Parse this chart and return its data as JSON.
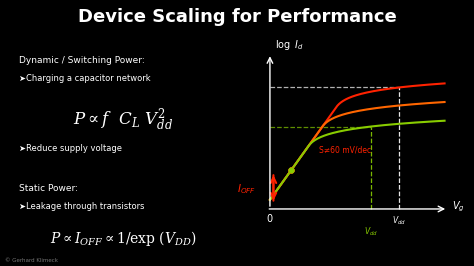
{
  "title": "Device Scaling for Performance",
  "bg_color": "#000000",
  "title_color": "#ffffff",
  "title_fontsize": 13,
  "dynamic_heading": "Dynamic / Switching Power:",
  "dynamic_bullet1": "➤Charging a capacitor network",
  "dynamic_eq": "$P \\propto f \\ \\ C_L \\ V_{dd}^{2}$",
  "dynamic_bullet2": "➤Reduce supply voltage",
  "static_heading": "Static Power:",
  "static_bullet1": "➤Leakage through transistors",
  "static_eq": "$P \\propto I_{OFF} \\propto 1/\\mathrm{exp}\\ (V_{DD})$",
  "copyright": "© Gerhard Klimeck",
  "graph_ylabel": "$\\log\\ I_d$",
  "graph_xlabel": "$V_g$",
  "graph_origin_label": "0",
  "ioff_label": "$I_{OFF}$",
  "s_label": "S≠60 mV/dec",
  "vdd_label_white": "$V_{dd}$",
  "vdd_label_green": "$V_{dd}$",
  "text_color": "#ffffff",
  "red_color": "#ff2200",
  "green_color": "#88cc00",
  "curve_colors": [
    "#ff2200",
    "#ff6600",
    "#88cc00"
  ],
  "dashed_color": "#ffffff"
}
